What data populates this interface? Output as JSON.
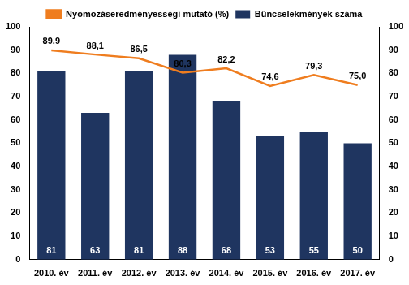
{
  "chart_data": {
    "type": "bar",
    "categories": [
      "2010. év",
      "2011. év",
      "2012. év",
      "2013. év",
      "2014. év",
      "2015. év",
      "2016. év",
      "2017. év"
    ],
    "series": [
      {
        "name": "Bűncselekmények száma",
        "type": "bar",
        "color": "#1f3560",
        "values": [
          81,
          63,
          81,
          88,
          68,
          53,
          55,
          50
        ]
      },
      {
        "name": "Nyomozáseredményességi mutató (%)",
        "type": "line",
        "axis": "y2",
        "color": "#ef7d1f",
        "values": [
          89.9,
          88.1,
          86.5,
          80.3,
          82.2,
          74.6,
          79.3,
          75.0
        ],
        "value_labels": [
          "89,9",
          "88,1",
          "86,5",
          "80,3",
          "82,2",
          "74,6",
          "79,3",
          "75,0"
        ]
      }
    ],
    "ylim": [
      0,
      100
    ],
    "yticks": [
      0,
      10,
      20,
      30,
      40,
      50,
      60,
      70,
      80,
      90,
      100
    ],
    "y2lim": [
      0,
      100
    ],
    "y2ticks": [
      0,
      10,
      20,
      30,
      40,
      50,
      60,
      70,
      80,
      90,
      100
    ],
    "data_labels": true,
    "grid": false,
    "legend": "top"
  }
}
